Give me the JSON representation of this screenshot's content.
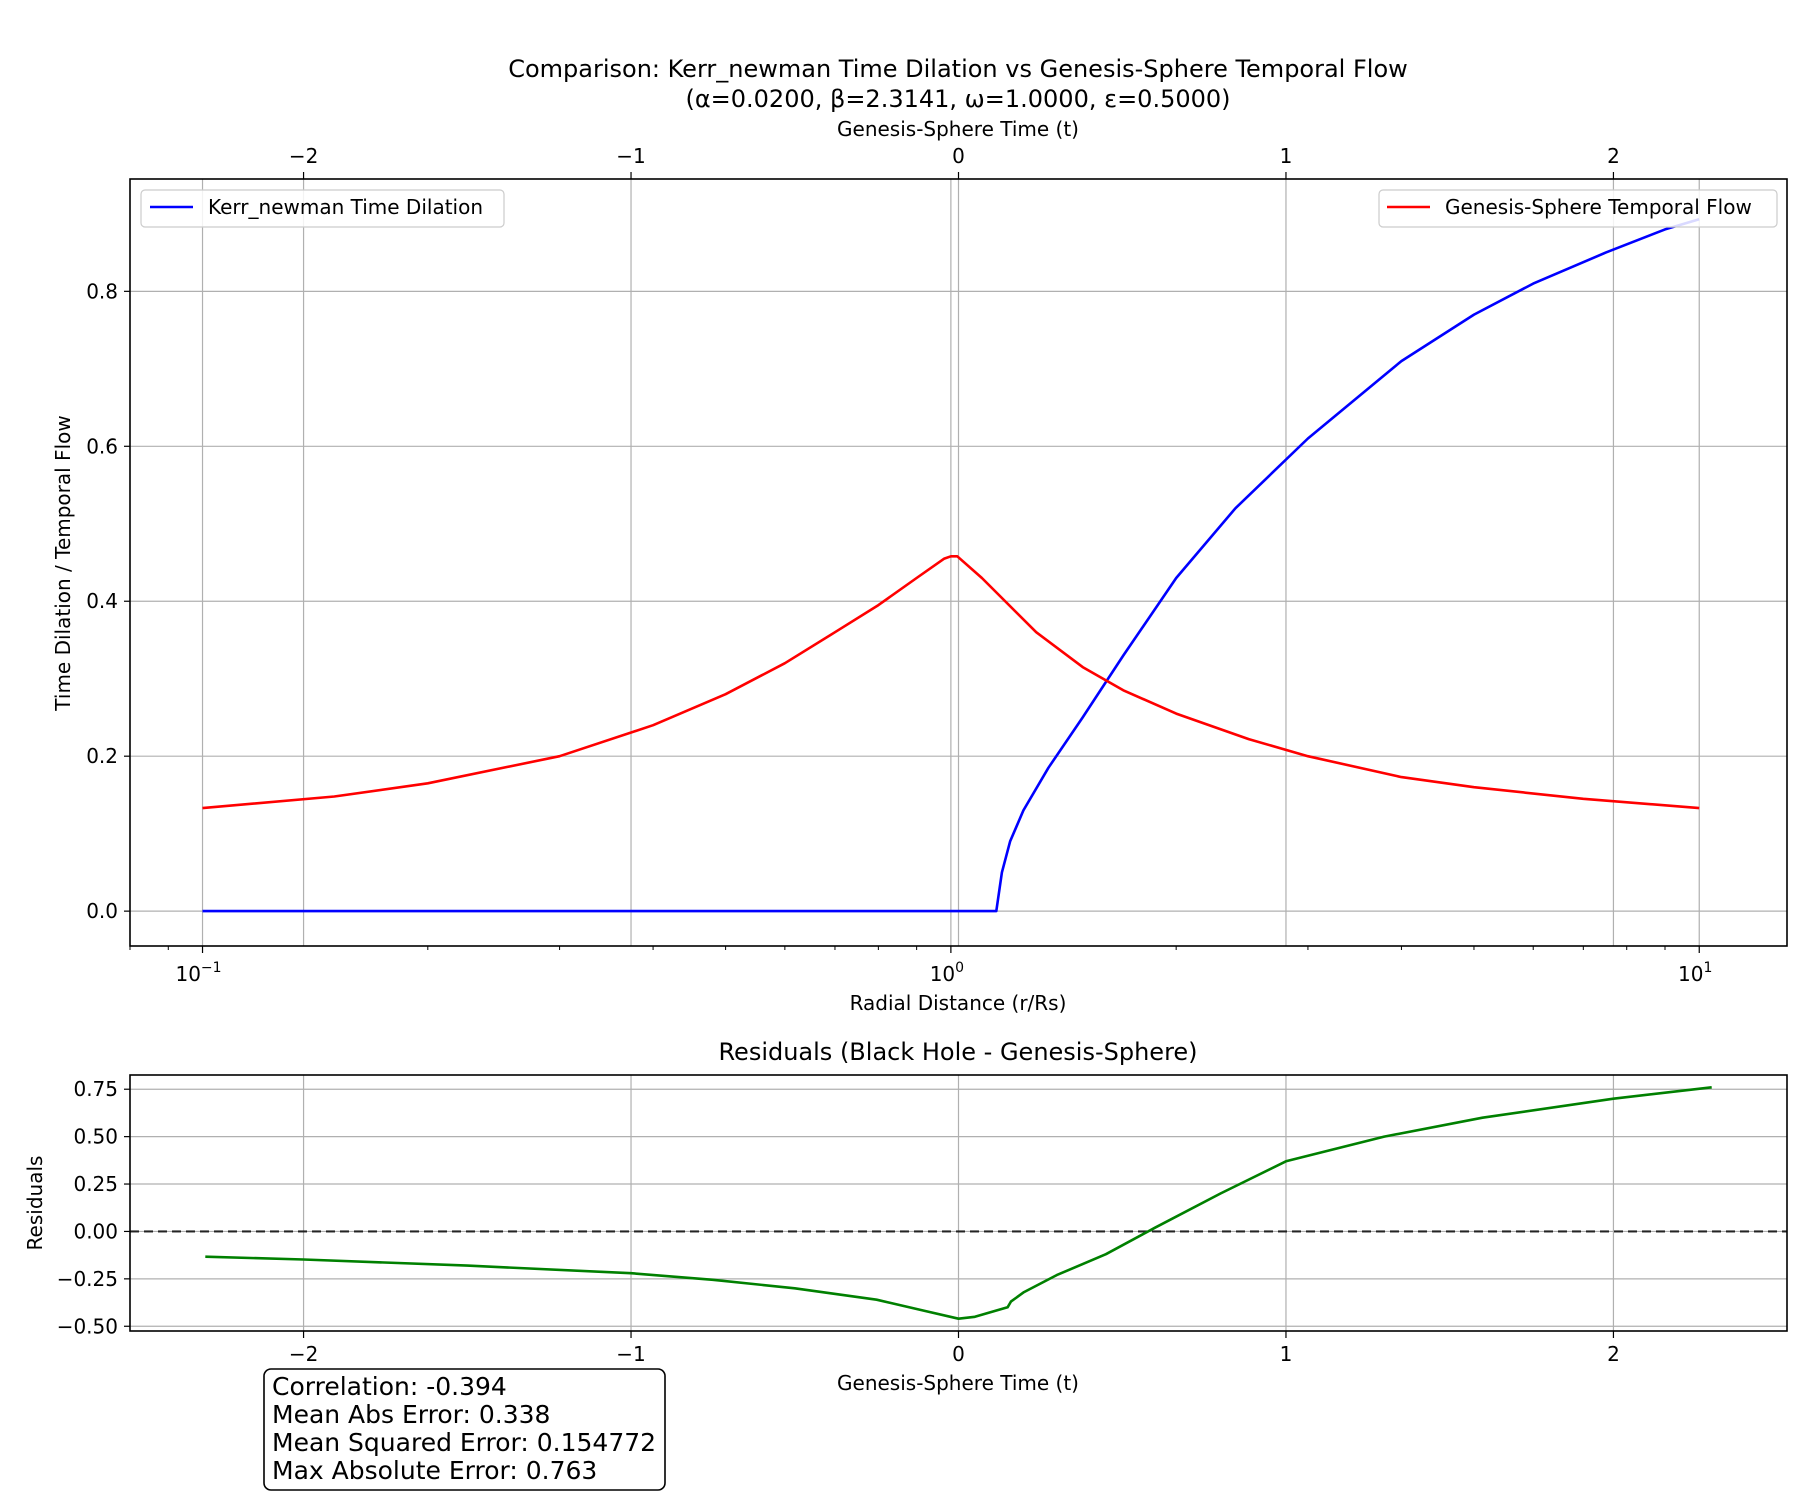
{
  "chart_data": [
    {
      "type": "line",
      "title": "Comparison: Kerr_newman Time Dilation vs Genesis-Sphere Temporal Flow",
      "subtitle": "(α=0.0200, β=2.3141, ω=1.0000, ε=0.5000)",
      "xlabel": "Radial Distance (r/Rs)",
      "x2label": "Genesis-Sphere Time (t)",
      "ylabel": "Time Dilation / Temporal Flow",
      "xscale": "log",
      "xlim": [
        0.08,
        13.1
      ],
      "x2lim": [
        -2.53,
        2.53
      ],
      "ylim": [
        -0.045,
        0.945
      ],
      "x_ticks": [
        {
          "value": 0.1,
          "base": "10",
          "exp": "−1"
        },
        {
          "value": 1,
          "base": "10",
          "exp": "0"
        },
        {
          "value": 10,
          "base": "10",
          "exp": "1"
        }
      ],
      "x2_ticks": [
        {
          "value": -2,
          "label": "−2"
        },
        {
          "value": -1,
          "label": "−1"
        },
        {
          "value": 0,
          "label": "0"
        },
        {
          "value": 1,
          "label": "1"
        },
        {
          "value": 2,
          "label": "2"
        }
      ],
      "y_ticks": [
        {
          "value": 0,
          "label": "0.0"
        },
        {
          "value": 0.2,
          "label": "0.2"
        },
        {
          "value": 0.4,
          "label": "0.4"
        },
        {
          "value": 0.6,
          "label": "0.6"
        },
        {
          "value": 0.8,
          "label": "0.8"
        }
      ],
      "grid": true,
      "series": [
        {
          "name": "Kerr_newman Time Dilation",
          "color": "#0000ff",
          "legend": "top-left",
          "x": [
            0.1,
            0.5,
            1.0,
            1.15,
            1.17,
            1.2,
            1.25,
            1.35,
            1.5,
            1.7,
            2.0,
            2.4,
            3.0,
            4.0,
            5.0,
            6.0,
            7.5,
            9.0,
            10.0
          ],
          "y": [
            0.0,
            0.0,
            0.0,
            0.0,
            0.05,
            0.09,
            0.13,
            0.185,
            0.25,
            0.33,
            0.43,
            0.52,
            0.61,
            0.71,
            0.77,
            0.81,
            0.85,
            0.88,
            0.893
          ]
        },
        {
          "name": "Genesis-Sphere Temporal Flow",
          "color": "#ff0000",
          "legend": "top-right",
          "x": [
            0.1,
            0.15,
            0.2,
            0.3,
            0.4,
            0.5,
            0.6,
            0.7,
            0.8,
            0.9,
            0.98,
            1.0,
            1.02,
            1.1,
            1.3,
            1.5,
            1.7,
            2.0,
            2.5,
            3.0,
            4.0,
            5.0,
            7.0,
            10.0
          ],
          "y": [
            0.133,
            0.148,
            0.165,
            0.2,
            0.24,
            0.28,
            0.32,
            0.36,
            0.395,
            0.43,
            0.455,
            0.458,
            0.458,
            0.43,
            0.36,
            0.315,
            0.285,
            0.255,
            0.222,
            0.2,
            0.173,
            0.16,
            0.145,
            0.133
          ]
        }
      ]
    },
    {
      "type": "line",
      "title": "Residuals (Black Hole - Genesis-Sphere)",
      "xlabel": "Genesis-Sphere Time (t)",
      "ylabel": "Residuals",
      "xlim": [
        -2.53,
        2.53
      ],
      "ylim": [
        -0.525,
        0.825
      ],
      "x_ticks": [
        {
          "value": -2,
          "label": "−2"
        },
        {
          "value": -1,
          "label": "−1"
        },
        {
          "value": 0,
          "label": "0"
        },
        {
          "value": 1,
          "label": "1"
        },
        {
          "value": 2,
          "label": "2"
        }
      ],
      "y_ticks": [
        {
          "value": -0.5,
          "label": "−0.50"
        },
        {
          "value": -0.25,
          "label": "−0.25"
        },
        {
          "value": 0,
          "label": "0.00"
        },
        {
          "value": 0.25,
          "label": "0.25"
        },
        {
          "value": 0.5,
          "label": "0.50"
        },
        {
          "value": 0.75,
          "label": "0.75"
        }
      ],
      "grid": true,
      "reference_line": {
        "y": 0,
        "style": "dashed",
        "color": "#000000"
      },
      "series": [
        {
          "color": "#008000",
          "x": [
            -2.3,
            -2.0,
            -1.5,
            -1.0,
            -0.75,
            -0.5,
            -0.25,
            -0.1,
            0.0,
            0.05,
            0.15,
            0.16,
            0.2,
            0.3,
            0.45,
            0.6,
            0.8,
            1.0,
            1.3,
            1.6,
            2.0,
            2.3
          ],
          "y": [
            -0.133,
            -0.148,
            -0.18,
            -0.22,
            -0.255,
            -0.3,
            -0.36,
            -0.42,
            -0.46,
            -0.45,
            -0.4,
            -0.37,
            -0.32,
            -0.23,
            -0.12,
            0.02,
            0.2,
            0.37,
            0.5,
            0.6,
            0.7,
            0.76
          ]
        }
      ]
    }
  ],
  "stats": {
    "correlation": "Correlation: -0.394",
    "mae": "Mean Abs Error: 0.338",
    "mse": "Mean Squared Error: 0.154772",
    "max_error": "Max Absolute Error: 0.763"
  }
}
